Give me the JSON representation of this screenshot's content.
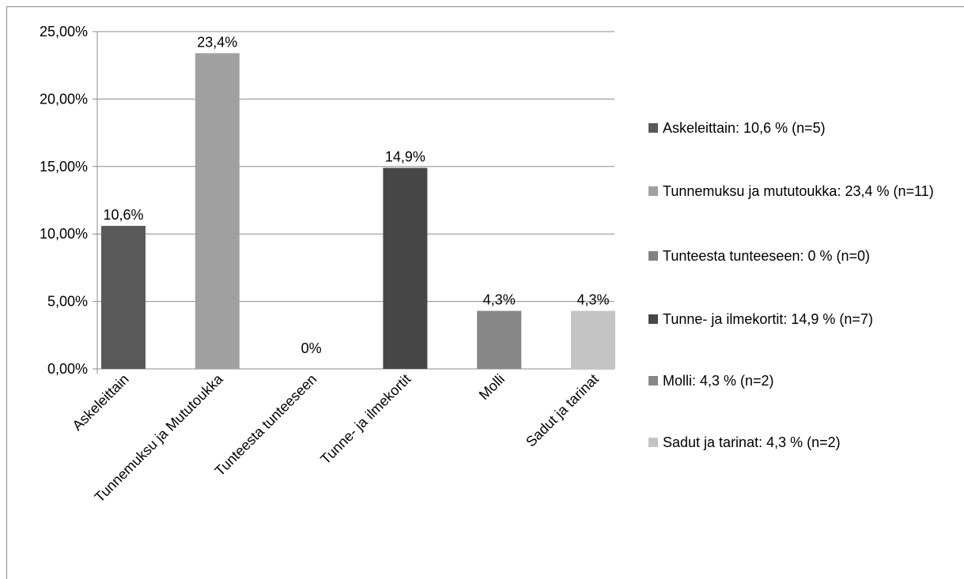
{
  "chart_data": {
    "type": "bar",
    "categories": [
      "Askeleittain",
      "Tunnemuksu ja Mututoukka",
      "Tunteesta tunteeseen",
      "Tunne- ja ilmekortit",
      "Molli",
      "Sadut ja tarinat"
    ],
    "values": [
      10.6,
      23.4,
      0,
      14.9,
      4.3,
      4.3
    ],
    "value_labels": [
      "10,6%",
      "23,4%",
      "0%",
      "14,9%",
      "4,3%",
      "4,3%"
    ],
    "colors": [
      "#595959",
      "#a0a0a0",
      "#808080",
      "#474747",
      "#878787",
      "#c4c4c4"
    ],
    "legend": [
      "Askeleittain: 10,6 % (n=5)",
      "Tunnemuksu ja mututoukka: 23,4 % (n=11)",
      "Tunteesta tunteeseen: 0 % (n=0)",
      "Tunne- ja ilmekortit: 14,9 % (n=7)",
      "Molli: 4,3 % (n=2)",
      "Sadut ja tarinat: 4,3 % (n=2)"
    ],
    "ylim": [
      0,
      25
    ],
    "yticks": [
      {
        "value": 0,
        "label": "0,00%"
      },
      {
        "value": 5,
        "label": "5,00%"
      },
      {
        "value": 10,
        "label": "10,00%"
      },
      {
        "value": 15,
        "label": "15,00%"
      },
      {
        "value": 20,
        "label": "20,00%"
      },
      {
        "value": 25,
        "label": "25,00%"
      }
    ],
    "grid": true
  }
}
